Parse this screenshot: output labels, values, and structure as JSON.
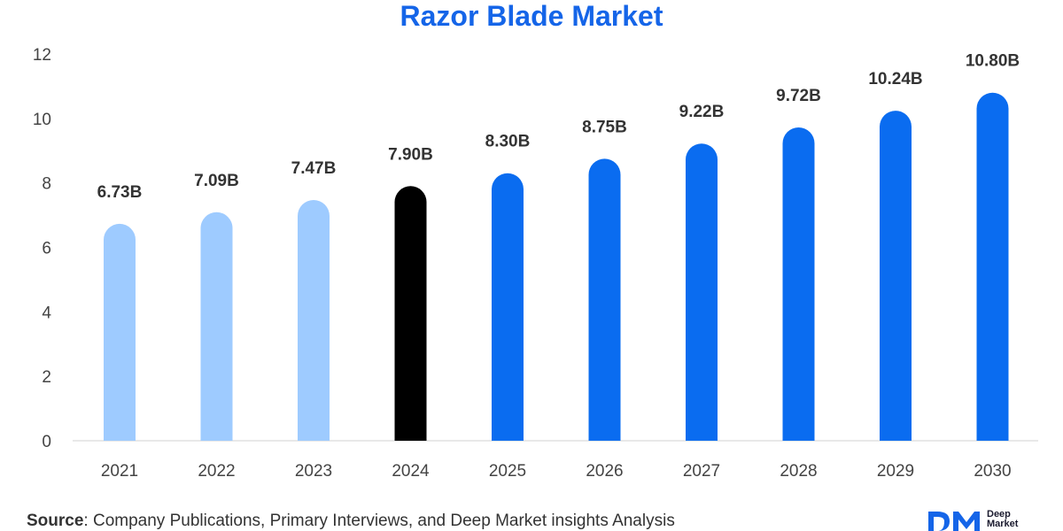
{
  "chart_data": {
    "type": "bar",
    "title": "Razor Blade Market",
    "categories": [
      "2021",
      "2022",
      "2023",
      "2024",
      "2025",
      "2026",
      "2027",
      "2028",
      "2029",
      "2030"
    ],
    "values": [
      6.73,
      7.09,
      7.47,
      7.9,
      8.3,
      8.75,
      9.22,
      9.72,
      10.24,
      10.8
    ],
    "data_labels": [
      "6.73B",
      "7.09B",
      "7.47B",
      "7.90B",
      "8.30B",
      "8.75B",
      "9.22B",
      "9.72B",
      "10.24B",
      "10.80B"
    ],
    "ylim": [
      0,
      12
    ],
    "yticks": [
      "0",
      "2",
      "4",
      "6",
      "8",
      "10",
      "12"
    ],
    "bar_colors": [
      "#9ecbff",
      "#9ecbff",
      "#9ecbff",
      "#000000",
      "#0a6cf0",
      "#0a6cf0",
      "#0a6cf0",
      "#0a6cf0",
      "#0a6cf0",
      "#0a6cf0"
    ],
    "title_color": "#1565e8",
    "grid": false
  },
  "footer": {
    "source_label": "Source",
    "source_text": ": Company Publications, Primary Interviews, and Deep Market insights Analysis"
  },
  "logo": {
    "line1": "Deep",
    "line2": "Market",
    "color": "#1565e8"
  }
}
